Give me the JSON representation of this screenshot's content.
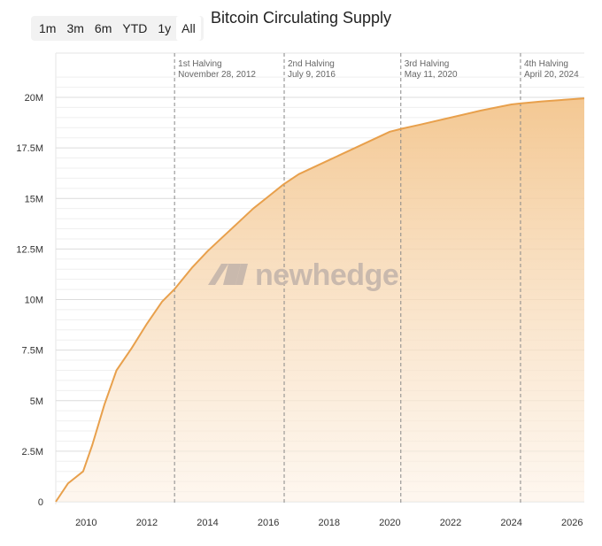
{
  "range_buttons": [
    "1m",
    "3m",
    "6m",
    "YTD",
    "1y",
    "All"
  ],
  "active_range": "All",
  "watermark": "newhedge",
  "colors": {
    "line": "#e8a04c",
    "fill_top": "#f3c58d",
    "grid": "#e6e6e6",
    "halving": "#888888"
  },
  "chart_data": {
    "type": "area",
    "title": "Bitcoin Circulating Supply",
    "xlabel": "",
    "ylabel": "",
    "xlim": [
      2009.0,
      2026.4
    ],
    "ylim": [
      0,
      21000000
    ],
    "x_ticks": [
      2010,
      2012,
      2014,
      2016,
      2018,
      2020,
      2022,
      2024,
      2026
    ],
    "y_ticks": [
      {
        "value": 0,
        "label": "0"
      },
      {
        "value": 2500000,
        "label": "2.5M"
      },
      {
        "value": 5000000,
        "label": "5M"
      },
      {
        "value": 7500000,
        "label": "7.5M"
      },
      {
        "value": 10000000,
        "label": "10M"
      },
      {
        "value": 12500000,
        "label": "12.5M"
      },
      {
        "value": 15000000,
        "label": "15M"
      },
      {
        "value": 17500000,
        "label": "17.5M"
      },
      {
        "value": 20000000,
        "label": "20M"
      }
    ],
    "series": [
      {
        "name": "Circulating Supply",
        "points": [
          [
            2009.0,
            0
          ],
          [
            2009.4,
            900000
          ],
          [
            2009.9,
            1500000
          ],
          [
            2010.2,
            2800000
          ],
          [
            2010.6,
            4800000
          ],
          [
            2011.0,
            6500000
          ],
          [
            2011.5,
            7600000
          ],
          [
            2012.0,
            8800000
          ],
          [
            2012.5,
            9900000
          ],
          [
            2012.9,
            10500000
          ],
          [
            2013.5,
            11600000
          ],
          [
            2014.0,
            12400000
          ],
          [
            2014.5,
            13100000
          ],
          [
            2015.0,
            13800000
          ],
          [
            2015.5,
            14500000
          ],
          [
            2016.0,
            15100000
          ],
          [
            2016.5,
            15700000
          ],
          [
            2017.0,
            16200000
          ],
          [
            2018.0,
            16900000
          ],
          [
            2019.0,
            17600000
          ],
          [
            2020.0,
            18300000
          ],
          [
            2020.4,
            18450000
          ],
          [
            2021.0,
            18650000
          ],
          [
            2022.0,
            19000000
          ],
          [
            2023.0,
            19350000
          ],
          [
            2024.0,
            19650000
          ],
          [
            2024.3,
            19700000
          ],
          [
            2025.0,
            19800000
          ],
          [
            2026.4,
            19950000
          ]
        ]
      }
    ],
    "annotations": [
      {
        "x": 2012.91,
        "label": "1st Halving",
        "date": "November 28, 2012"
      },
      {
        "x": 2016.52,
        "label": "2nd Halving",
        "date": "July 9, 2016"
      },
      {
        "x": 2020.36,
        "label": "3rd Halving",
        "date": "May 11, 2020"
      },
      {
        "x": 2024.3,
        "label": "4th Halving",
        "date": "April 20, 2024"
      }
    ]
  }
}
